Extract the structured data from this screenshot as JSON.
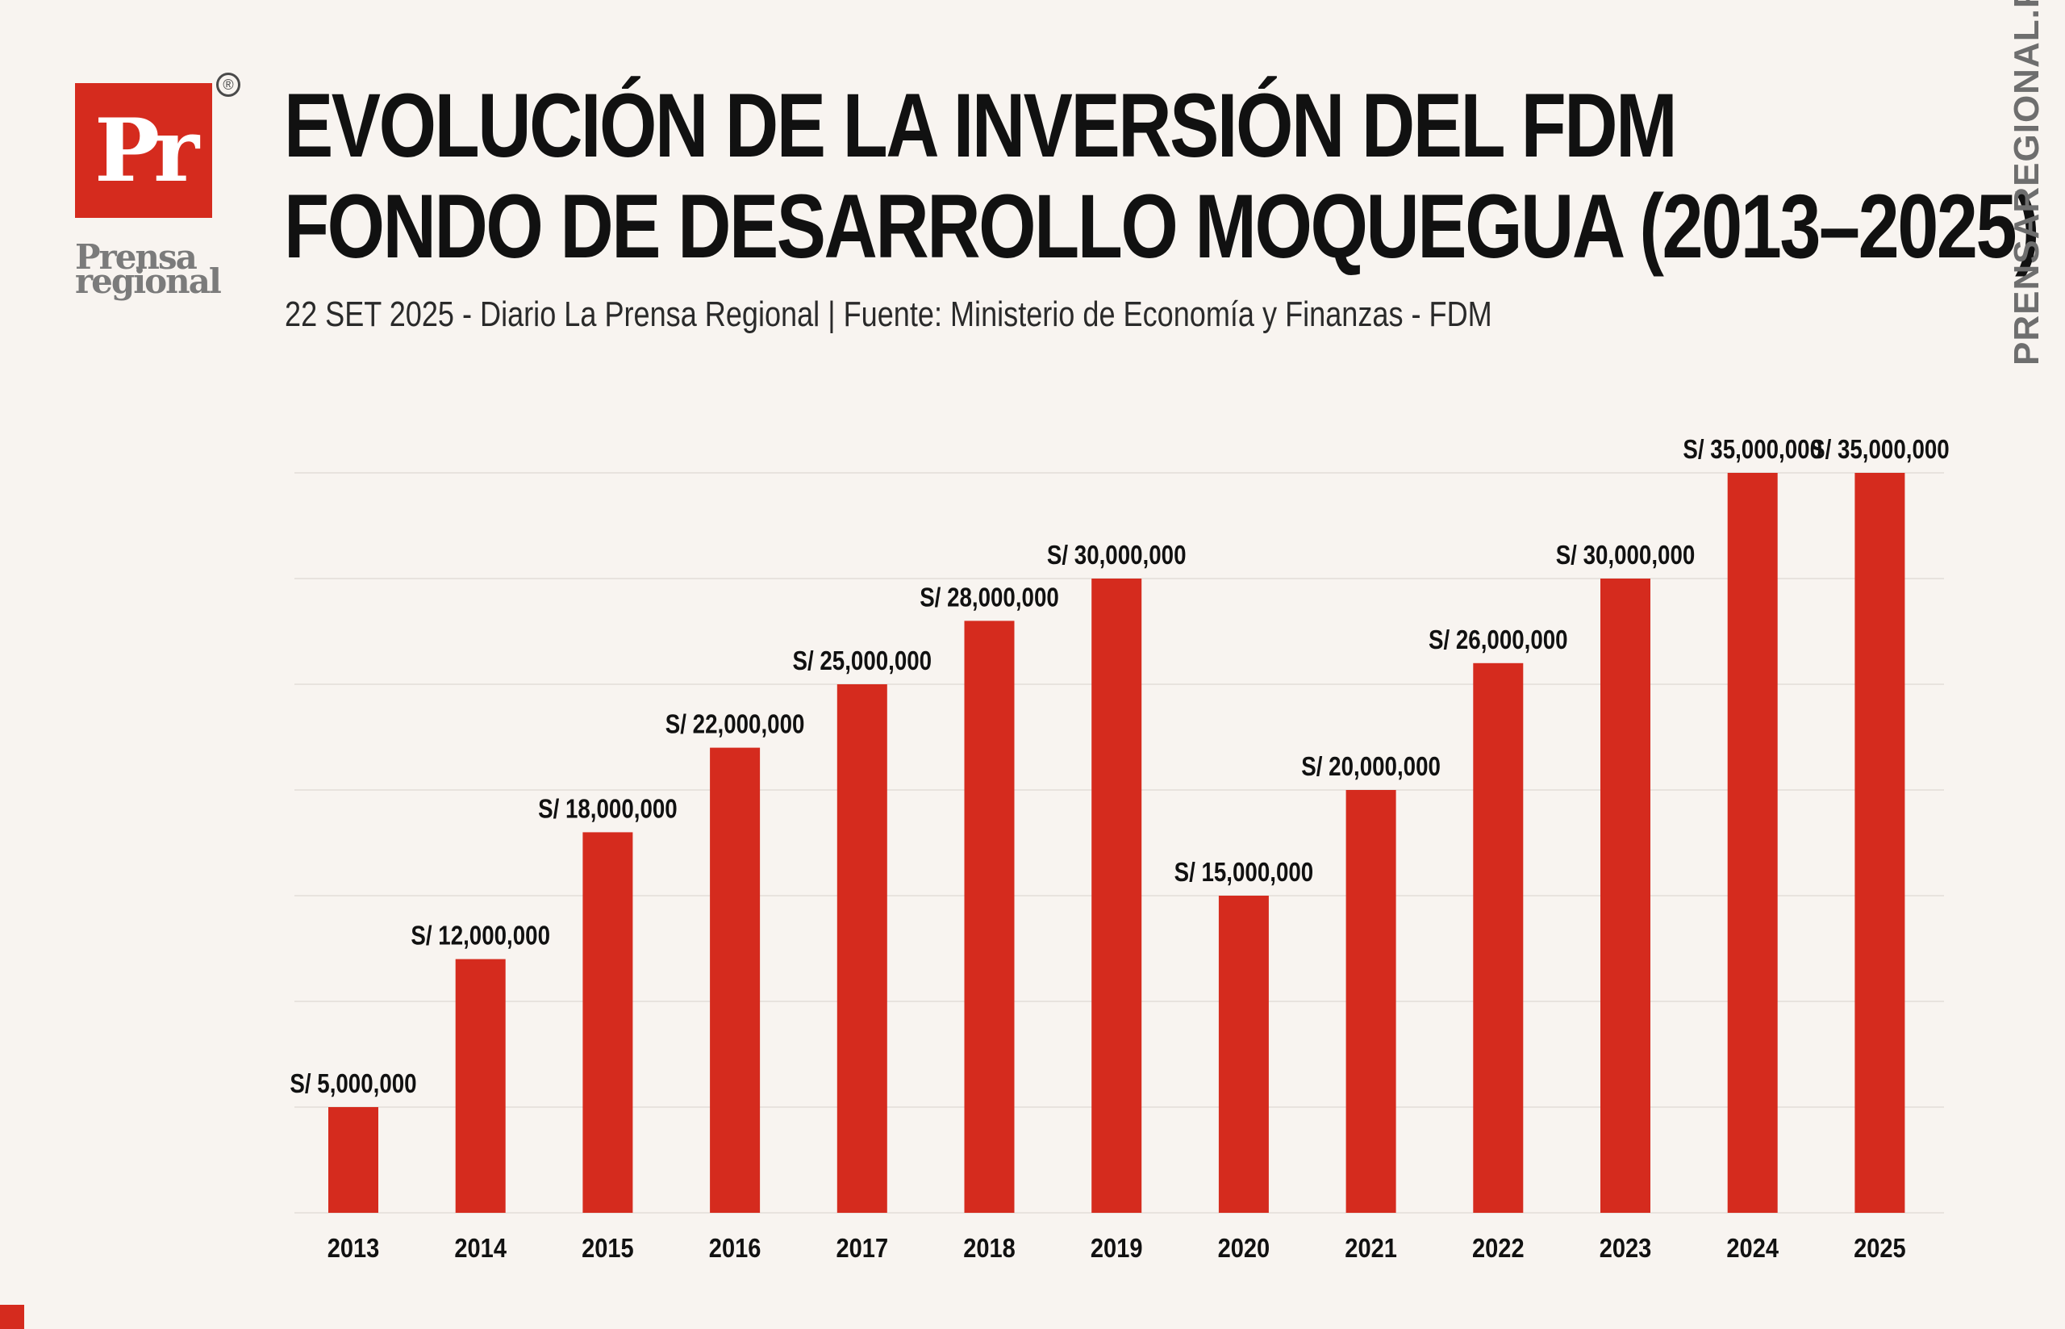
{
  "logo": {
    "mark": "Pr",
    "registered": "®",
    "word1": "Prensa",
    "word2": "regional"
  },
  "header": {
    "title_line1": "EVOLUCIÓN DE LA INVERSIÓN DEL FDM",
    "title_line2": "FONDO DE DESARROLLO MOQUEGUA (2013–2025)",
    "subtitle": "22 SET 2025 - Diario La Prensa Regional | Fuente: Ministerio de Economía y Finanzas - FDM"
  },
  "side_text": "PRENSAREGIONAL.PE",
  "colors": {
    "bar": "#d52b1e",
    "background": "#f8f4f0",
    "text": "#111111",
    "grid": "#e8e3de"
  },
  "chart_data": {
    "type": "bar",
    "categories": [
      "2013",
      "2014",
      "2015",
      "2016",
      "2017",
      "2018",
      "2019",
      "2020",
      "2021",
      "2022",
      "2023",
      "2024",
      "2025"
    ],
    "values": [
      5000000,
      12000000,
      18000000,
      22000000,
      25000000,
      28000000,
      30000000,
      15000000,
      20000000,
      26000000,
      30000000,
      35000000,
      35000000
    ],
    "labels": [
      "S/ 5,000,000",
      "S/ 12,000,000",
      "S/ 18,000,000",
      "S/ 22,000,000",
      "S/ 25,000,000",
      "S/ 28,000,000",
      "S/ 30,000,000",
      "S/ 15,000,000",
      "S/ 20,000,000",
      "S/ 26,000,000",
      "S/ 30,000,000",
      "S/ 35,000,000",
      "S/ 35,000,000"
    ],
    "ylim": [
      0,
      35000000
    ],
    "grid": true,
    "gridlines": [
      0,
      5000000,
      10000000,
      15000000,
      20000000,
      25000000,
      30000000,
      35000000
    ]
  }
}
